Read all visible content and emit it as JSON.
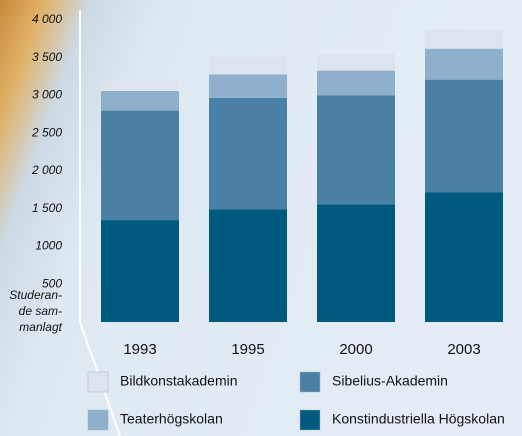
{
  "chart_data": {
    "type": "stacked_bar",
    "ylabel": [
      "Studeran-",
      "de sam-",
      "manlagt"
    ],
    "categories": [
      "1993",
      "1995",
      "2000",
      "2003"
    ],
    "series": [
      {
        "name": "Konstindustriella Högskolan",
        "color": "#005a7e",
        "values": [
          1350,
          1490,
          1560,
          1720
        ]
      },
      {
        "name": "Sibelius-Akademin",
        "color": "#4a80a6",
        "values": [
          1450,
          1480,
          1440,
          1490
        ]
      },
      {
        "name": "Teaterhögskolan",
        "color": "#8fb0cc",
        "values": [
          260,
          310,
          330,
          410
        ]
      },
      {
        "name": "Bildkonstakademin",
        "color": "#dde4ee",
        "values": [
          140,
          230,
          220,
          250
        ]
      }
    ],
    "ylim": [
      0,
      4000
    ],
    "yticks": [
      500,
      {
        "value": 1000,
        "label": "1000"
      },
      {
        "value": 1500,
        "label": "1 500"
      },
      {
        "value": 2000,
        "label": "2 000"
      },
      {
        "value": 2500,
        "label": "2 500"
      },
      {
        "value": 3000,
        "label": "3 000"
      },
      {
        "value": 3500,
        "label": "3 500"
      },
      {
        "value": 4000,
        "label": "4 000"
      }
    ]
  }
}
